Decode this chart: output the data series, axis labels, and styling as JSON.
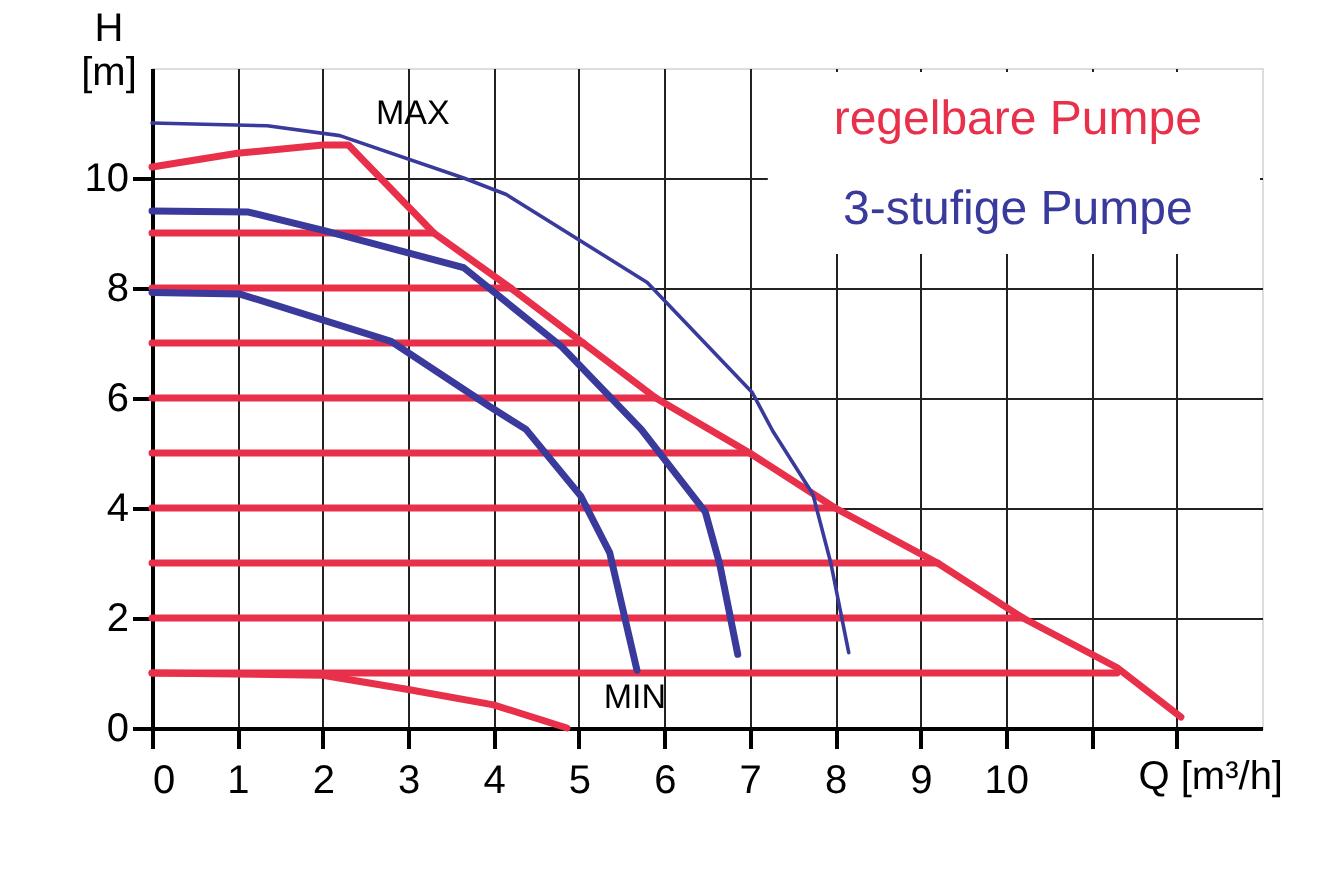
{
  "chart_data": {
    "type": "line",
    "xlabel": "Q [m³/h]",
    "ylabel": "H [m]",
    "xlim": [
      0,
      13
    ],
    "ylim": [
      0,
      12
    ],
    "xticks": [
      0,
      1,
      2,
      3,
      4,
      5,
      6,
      7,
      8,
      9,
      10,
      {
        "value": 11,
        "label": null
      },
      {
        "value": 12,
        "label": null
      }
    ],
    "yticks": [
      0,
      2,
      4,
      6,
      8,
      10
    ],
    "grid": true,
    "legend": "top right",
    "line_style": "solid",
    "marker": "none",
    "annotations": [
      "MAX",
      "MIN"
    ],
    "series": [
      {
        "name": "regelbare Pumpe",
        "color": "#e8304a",
        "x": [
          0,
          1,
          2,
          2.3,
          3.3,
          4.2,
          5.9,
          7,
          8,
          9.2,
          10.2,
          11.3,
          12.05
        ],
        "values": [
          10.2,
          10.45,
          10.6,
          10.6,
          9,
          8,
          6,
          5,
          4,
          3,
          2,
          1.1,
          0.2
        ]
      },
      {
        "color": "#e8304a",
        "x": [
          0,
          2,
          3,
          4,
          4.86
        ],
        "values": [
          1,
          0.96,
          0.7,
          0.42,
          0
        ]
      },
      {
        "color": "#e8304a",
        "x": [
          0,
          3.3
        ],
        "values": [
          9,
          9
        ]
      },
      {
        "color": "#e8304a",
        "x": [
          0,
          4.2
        ],
        "values": [
          8,
          8
        ]
      },
      {
        "color": "#e8304a",
        "x": [
          0,
          5.05
        ],
        "values": [
          7,
          7
        ]
      },
      {
        "color": "#e8304a",
        "x": [
          0,
          5.9
        ],
        "values": [
          6,
          6
        ]
      },
      {
        "color": "#e8304a",
        "x": [
          0,
          7
        ],
        "values": [
          5,
          5
        ]
      },
      {
        "color": "#e8304a",
        "x": [
          0,
          8
        ],
        "values": [
          4,
          4
        ]
      },
      {
        "color": "#e8304a",
        "x": [
          0,
          9.2
        ],
        "values": [
          3,
          3
        ]
      },
      {
        "color": "#e8304a",
        "x": [
          0,
          10.2
        ],
        "values": [
          2,
          2
        ]
      },
      {
        "color": "#e8304a",
        "x": [
          0,
          11.3
        ],
        "values": [
          1,
          1
        ]
      },
      {
        "name": "3-stufige Pumpe",
        "color": "#3a3a9c",
        "x": [
          0,
          1.35,
          2.2,
          3.65,
          4.15,
          5.8,
          7.03,
          7.27,
          7.74,
          7.95,
          8.16
        ],
        "values": [
          11,
          10.95,
          10.77,
          10,
          9.7,
          8.1,
          6.1,
          5.4,
          4.25,
          3,
          1.37
        ]
      },
      {
        "color": "#3a3a9c",
        "x": [
          0,
          1.13,
          2.03,
          3.65,
          4.8,
          5.73,
          6.48,
          6.65,
          6.86
        ],
        "values": [
          9.4,
          9.38,
          9.04,
          8.37,
          6.93,
          5.43,
          3.93,
          2.97,
          1.34
        ]
      },
      {
        "color": "#3a3a9c",
        "x": [
          0,
          1.03,
          2.8,
          3.95,
          4.38,
          5.02,
          5.36,
          5.68
        ],
        "values": [
          7.92,
          7.89,
          7.03,
          5.85,
          5.43,
          4.22,
          3.19,
          1.05
        ]
      }
    ]
  }
}
